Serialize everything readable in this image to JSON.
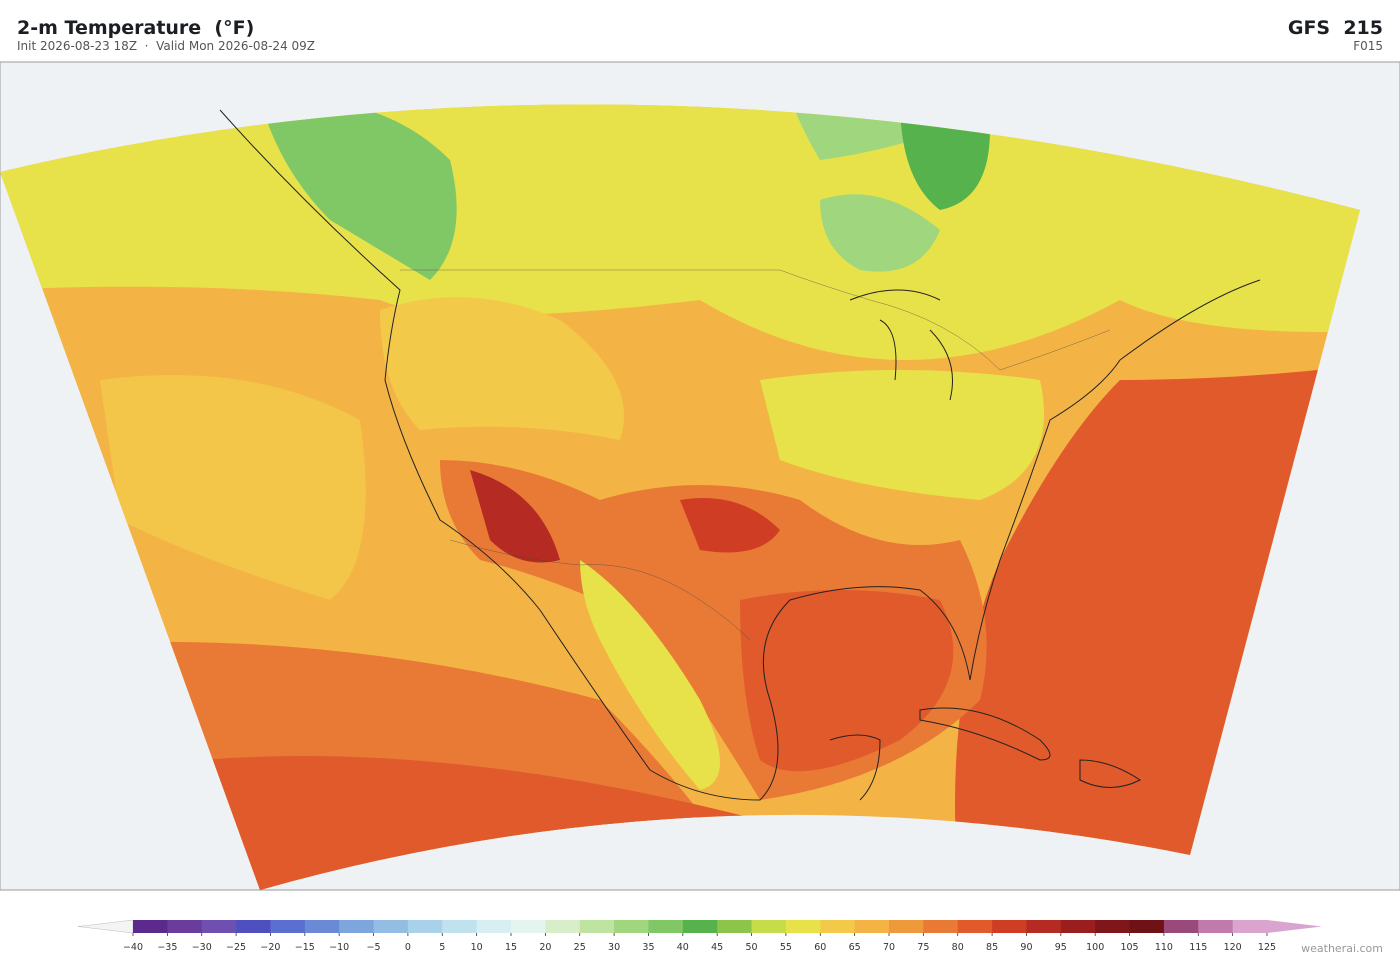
{
  "header": {
    "title": "2-m Temperature  (°F)",
    "subtitle": "Init 2026-08-23 18Z  ·  Valid Mon 2026-08-24 09Z",
    "model": "GFS  215",
    "forecast_hour": "F015"
  },
  "colorbar": {
    "ticks": [
      {
        "value": -40,
        "label": "−40"
      },
      {
        "value": -35,
        "label": "−35"
      },
      {
        "value": -30,
        "label": "−30"
      },
      {
        "value": -25,
        "label": "−25"
      },
      {
        "value": -20,
        "label": "−20"
      },
      {
        "value": -15,
        "label": "−15"
      },
      {
        "value": -10,
        "label": "−10"
      },
      {
        "value": -5,
        "label": "−5"
      },
      0,
      5,
      10,
      15,
      20,
      25,
      30,
      35,
      40,
      45,
      50,
      55,
      60,
      65,
      70,
      75,
      80,
      85,
      90,
      95,
      100,
      105,
      110,
      115,
      120,
      125
    ],
    "colors": [
      "#5b2a8c",
      "#6a3c9c",
      "#6e50b0",
      "#4f4fbf",
      "#5a6fd0",
      "#6a8ad6",
      "#7da6dc",
      "#93bde3",
      "#a9d2ea",
      "#c0e2ef",
      "#d7eef2",
      "#e6f4ef",
      "#d8eecb",
      "#bfe3a0",
      "#a0d67e",
      "#80c866",
      "#55b24c",
      "#8cc44c",
      "#c6dc4a",
      "#e8e24a",
      "#f3c94a",
      "#f3b445",
      "#ee9a3c",
      "#e97a35",
      "#e15a2b",
      "#cf3d25",
      "#b52a22",
      "#9a1e1e",
      "#7f1619",
      "#6e1218",
      "#9a4a7a",
      "#c07aac",
      "#d9a4cd"
    ],
    "under_color": "#f4f4f4",
    "over_color": "#d9a4cd"
  },
  "footer": {
    "credit": "weatherai.com"
  }
}
